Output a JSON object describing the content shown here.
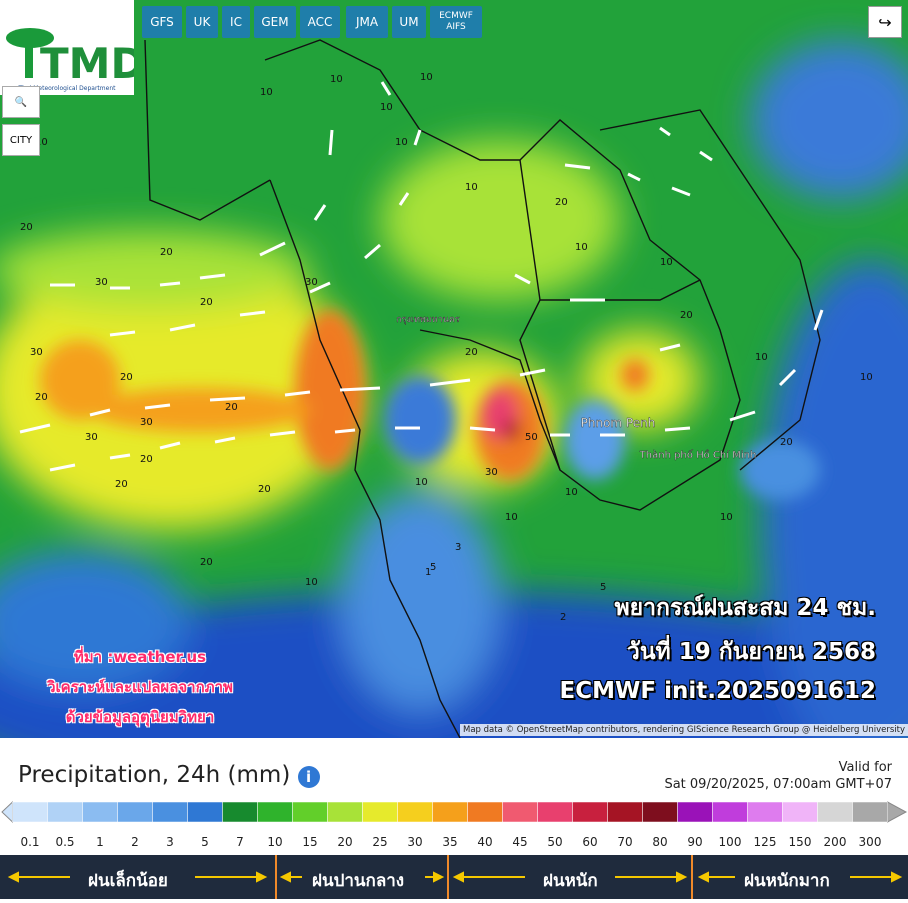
{
  "logo": {
    "title": "TMD",
    "subtitle": "Thai Meteorological Department"
  },
  "models": [
    "GFS",
    "UK",
    "IC",
    "GEM",
    "ACC",
    "JMA",
    "UM",
    "ECMWF AIFS"
  ],
  "city_button": "CITY",
  "places": [
    "กรุงเทพมหานคร",
    "Phnom Penh",
    "Thành phố Hồ Chí Minh"
  ],
  "contour_labels": [
    10,
    10,
    10,
    10,
    10,
    10,
    20,
    20,
    30,
    30,
    20,
    20,
    30,
    20,
    30,
    20,
    20,
    20,
    20,
    30,
    50,
    30,
    20,
    10,
    10,
    10,
    20,
    20,
    10,
    10,
    10,
    10,
    20,
    10,
    10,
    5,
    3,
    1,
    2,
    5,
    10,
    20
  ],
  "overlay": {
    "lines": [
      "พยากรณ์ฝนสะสม 24 ชม.",
      "วันที่ 19 กันยายน 2568",
      "ECMWF init.2025091612"
    ],
    "source": [
      "ที่มา :weather.us",
      "วิเคราะห์และแปลผลจากภาพ",
      "ด้วยข้อมูลอุตุนิยมวิทยา"
    ]
  },
  "attribution": "Map data © OpenStreetMap contributors, rendering GIScience Research Group @ Heidelberg University",
  "legend": {
    "title": "Precipitation, 24h (mm)",
    "valid_label": "Valid for",
    "valid_time": "Sat 09/20/2025, 07:00am GMT+07",
    "scale_labels": [
      "0.1",
      "0.5",
      "1",
      "2",
      "3",
      "5",
      "7",
      "10",
      "15",
      "20",
      "25",
      "30",
      "35",
      "40",
      "45",
      "50",
      "60",
      "70",
      "80",
      "90",
      "100",
      "125",
      "150",
      "200",
      "300"
    ],
    "scale_colors": [
      "#cfe4fb",
      "#b0d2f6",
      "#8bbcf1",
      "#6aa7ea",
      "#4a90e0",
      "#2f78d4",
      "#178a2e",
      "#2fb32c",
      "#62cf2a",
      "#a8e238",
      "#e6ea2c",
      "#f5cf1e",
      "#f5a01b",
      "#f07a22",
      "#f05a70",
      "#e8406e",
      "#c8203e",
      "#a51424",
      "#7e0e1e",
      "#9a12b8",
      "#c03ddc",
      "#de7cee",
      "#f0b4f8",
      "#d6d6d6",
      "#a8a8a8"
    ],
    "categories": [
      "ฝนเล็กน้อย",
      "ฝนปานกลาง",
      "ฝนหนัก",
      "ฝนหนักมาก"
    ]
  }
}
